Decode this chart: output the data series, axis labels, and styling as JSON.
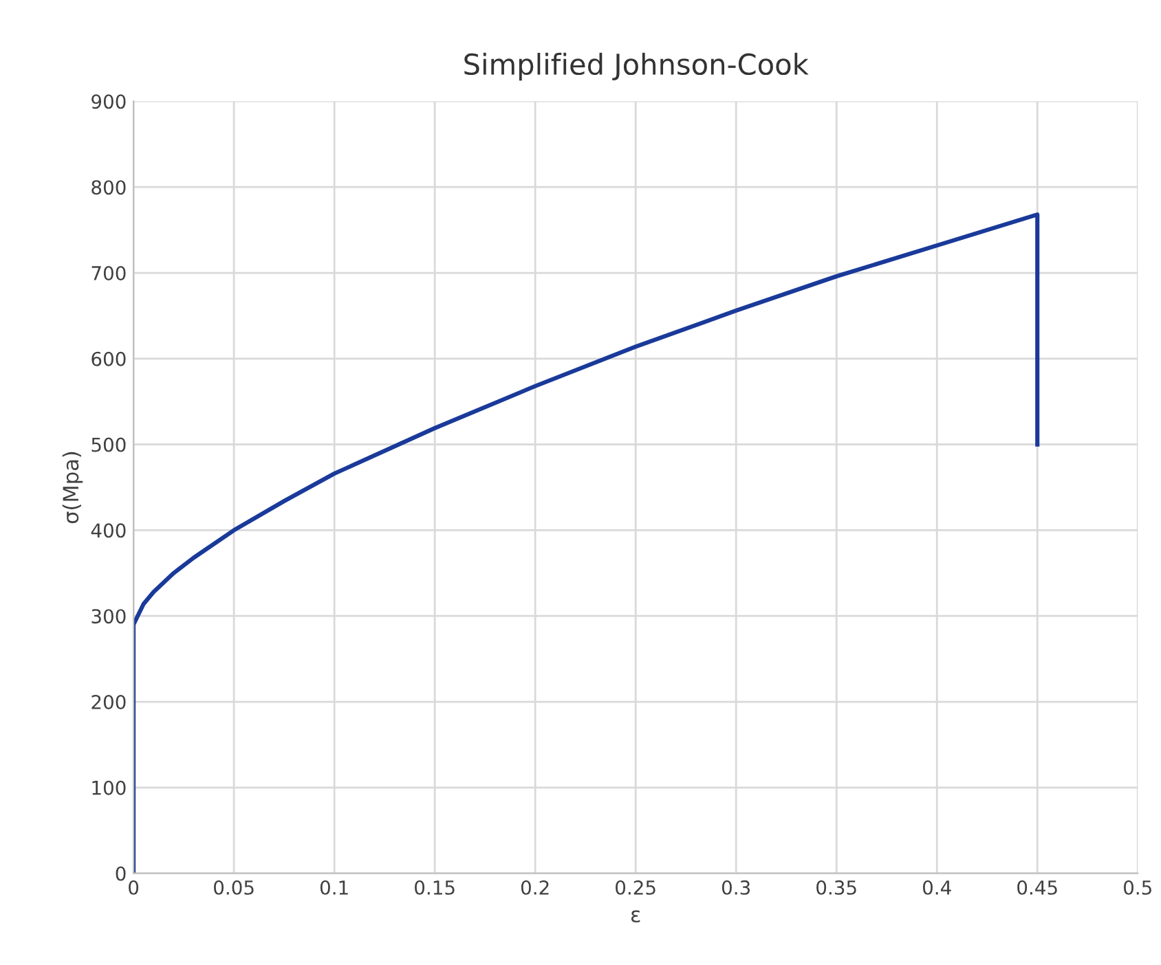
{
  "chart_data": {
    "type": "line",
    "title": "Simplified Johnson-Cook",
    "xlabel": "ε",
    "ylabel": "σ(Mpa)",
    "series": [
      {
        "color": "#1a3a9a",
        "x": [
          0,
          0,
          0.005,
          0.01,
          0.02,
          0.03,
          0.05,
          0.075,
          0.1,
          0.15,
          0.2,
          0.25,
          0.3,
          0.35,
          0.4,
          0.45,
          0.45
        ],
        "values": [
          0,
          290,
          314,
          328,
          350,
          368,
          400,
          434,
          466,
          519,
          568,
          614,
          656,
          696,
          732,
          768,
          500
        ]
      }
    ],
    "xlim": [
      0,
      0.5
    ],
    "xticks": [
      0,
      0.05,
      0.1,
      0.15,
      0.2,
      0.25,
      0.3,
      0.35,
      0.4,
      0.45,
      0.5
    ],
    "ylim": [
      0,
      900
    ],
    "yticks": [
      0,
      100,
      200,
      300,
      400,
      500,
      600,
      700,
      800,
      900
    ],
    "grid": true,
    "marker": "none",
    "line_style": "solid",
    "legend": false
  }
}
